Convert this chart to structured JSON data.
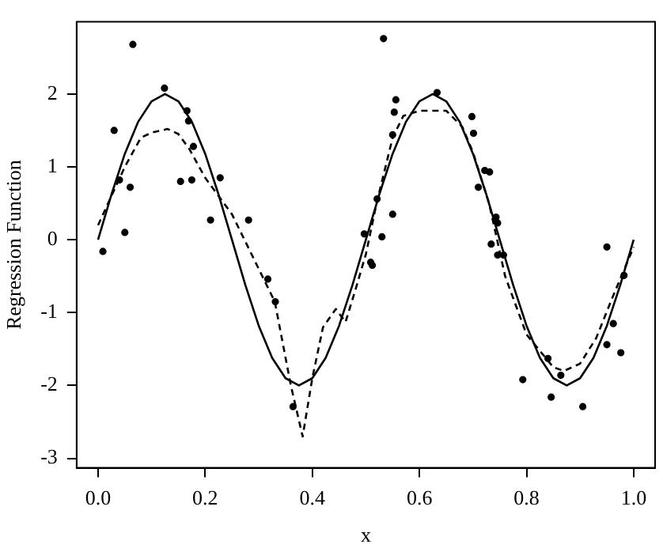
{
  "chart_data": {
    "type": "scatter",
    "xlabel": "x",
    "ylabel": "Regression Function",
    "xlim": [
      -0.04,
      1.04
    ],
    "ylim": [
      -3.13,
      2.99
    ],
    "xticks": [
      {
        "value": 0,
        "label": "0.0"
      },
      {
        "value": 0.2,
        "label": "0.2"
      },
      {
        "value": 0.4,
        "label": "0.4"
      },
      {
        "value": 0.6,
        "label": "0.6"
      },
      {
        "value": 0.8,
        "label": "0.8"
      },
      {
        "value": 1,
        "label": "1.0"
      }
    ],
    "yticks": [
      -3,
      -2,
      -1,
      0,
      1,
      2
    ],
    "grid": false,
    "legend": false,
    "series": [
      {
        "type": "scatter",
        "color": "#000000",
        "marker": "circle",
        "x": [
          0.009,
          0.03,
          0.04,
          0.05,
          0.06,
          0.065,
          0.124,
          0.166,
          0.169,
          0.178,
          0.154,
          0.175,
          0.21,
          0.228,
          0.281,
          0.317,
          0.331,
          0.364,
          0.497,
          0.509,
          0.512,
          0.521,
          0.53,
          0.533,
          0.55,
          0.55,
          0.553,
          0.556,
          0.633,
          0.698,
          0.701,
          0.71,
          0.722,
          0.731,
          0.734,
          0.743,
          0.746,
          0.746,
          0.757,
          0.793,
          0.84,
          0.846,
          0.864,
          0.905,
          0.95,
          0.95,
          0.962,
          0.976,
          0.982
        ],
        "values": [
          -0.16,
          1.5,
          0.82,
          0.1,
          0.72,
          2.68,
          2.08,
          1.77,
          1.63,
          1.28,
          0.8,
          0.82,
          0.27,
          0.85,
          0.27,
          -0.54,
          -0.85,
          -2.29,
          0.08,
          -0.31,
          -0.35,
          0.56,
          0.04,
          2.76,
          0.35,
          1.44,
          1.75,
          1.92,
          2.02,
          1.69,
          1.46,
          0.72,
          0.95,
          0.93,
          -0.06,
          0.31,
          0.23,
          -0.21,
          -0.21,
          -1.92,
          -1.63,
          -2.16,
          -1.86,
          -2.29,
          -0.1,
          -1.44,
          -1.15,
          -1.55,
          -0.49
        ]
      },
      {
        "type": "line",
        "color": "#000000",
        "marker": "none",
        "line_style": "solid",
        "x": [
          0,
          0.025,
          0.05,
          0.075,
          0.1,
          0.125,
          0.15,
          0.175,
          0.2,
          0.225,
          0.25,
          0.275,
          0.3,
          0.325,
          0.35,
          0.375,
          0.4,
          0.425,
          0.45,
          0.475,
          0.5,
          0.525,
          0.55,
          0.575,
          0.6,
          0.625,
          0.65,
          0.675,
          0.7,
          0.725,
          0.75,
          0.775,
          0.8,
          0.825,
          0.85,
          0.875,
          0.9,
          0.925,
          0.95,
          0.975,
          1
        ],
        "values": [
          0,
          0.62,
          1.18,
          1.62,
          1.9,
          2,
          1.9,
          1.62,
          1.18,
          0.62,
          0,
          -0.62,
          -1.18,
          -1.62,
          -1.9,
          -2,
          -1.9,
          -1.62,
          -1.18,
          -0.62,
          0,
          0.62,
          1.18,
          1.62,
          1.9,
          2,
          1.9,
          1.62,
          1.18,
          0.62,
          0,
          -0.62,
          -1.18,
          -1.62,
          -1.9,
          -2,
          -1.9,
          -1.62,
          -1.18,
          -0.62,
          0
        ]
      },
      {
        "type": "line",
        "color": "#000000",
        "marker": "none",
        "line_style": "dashed",
        "x": [
          0,
          0.025,
          0.05,
          0.08,
          0.1,
          0.13,
          0.15,
          0.17,
          0.2,
          0.25,
          0.3,
          0.33,
          0.36,
          0.382,
          0.4,
          0.42,
          0.444,
          0.462,
          0.48,
          0.5,
          0.52,
          0.55,
          0.57,
          0.6,
          0.65,
          0.68,
          0.7,
          0.73,
          0.76,
          0.8,
          0.85,
          0.87,
          0.9,
          0.93,
          0.96,
          1
        ],
        "values": [
          0.2,
          0.6,
          1.0,
          1.4,
          1.47,
          1.52,
          1.45,
          1.25,
          0.85,
          0.35,
          -0.4,
          -0.85,
          -2.0,
          -2.7,
          -1.9,
          -1.2,
          -0.95,
          -1.13,
          -0.7,
          -0.2,
          0.5,
          1.4,
          1.7,
          1.77,
          1.77,
          1.55,
          1.2,
          0.5,
          -0.5,
          -1.3,
          -1.75,
          -1.8,
          -1.7,
          -1.35,
          -0.8,
          -0.1
        ]
      }
    ]
  }
}
